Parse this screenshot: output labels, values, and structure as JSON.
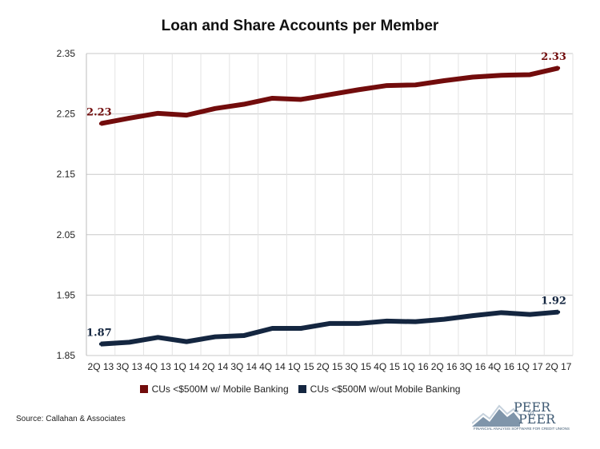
{
  "title": "Loan and Share Accounts per Member",
  "source": "Source: Callahan & Associates",
  "logo": {
    "line1": "PEER",
    "to": "to",
    "line2": "PEER",
    "tagline": "FINANCIAL ANALYSIS SOFTWARE FOR CREDIT UNIONS"
  },
  "legend": [
    {
      "label": "CUs <$500M w/ Mobile Banking",
      "color": "#720c0c"
    },
    {
      "label": "CUs <$500M w/out Mobile Banking",
      "color": "#142640"
    }
  ],
  "chart_data": {
    "type": "line",
    "title": "Loan and Share Accounts per Member",
    "categories": [
      "2Q 13",
      "3Q 13",
      "4Q 13",
      "1Q 14",
      "2Q 14",
      "3Q 14",
      "4Q 14",
      "1Q 15",
      "2Q 15",
      "3Q 15",
      "4Q 15",
      "1Q 16",
      "2Q 16",
      "3Q 16",
      "4Q 16",
      "1Q 17",
      "2Q 17"
    ],
    "ylim": [
      1.85,
      2.35
    ],
    "yticks": [
      "2.35",
      "2.25",
      "2.15",
      "2.05",
      "1.95",
      "1.85"
    ],
    "grid": true,
    "legend_position": "bottom",
    "series": [
      {
        "name": "CUs <$500M w/ Mobile Banking",
        "color": "#720c0c",
        "values": [
          2.234,
          2.243,
          2.251,
          2.248,
          2.259,
          2.266,
          2.276,
          2.274,
          2.282,
          2.29,
          2.297,
          2.298,
          2.305,
          2.311,
          2.314,
          2.315,
          2.326
        ],
        "labels": [
          {
            "index": 0,
            "text": "2.23"
          },
          {
            "index": 16,
            "text": "2.33"
          }
        ]
      },
      {
        "name": "CUs <$500M w/out Mobile Banking",
        "color": "#142640",
        "values": [
          1.869,
          1.872,
          1.88,
          1.873,
          1.881,
          1.883,
          1.895,
          1.895,
          1.903,
          1.903,
          1.907,
          1.906,
          1.91,
          1.916,
          1.921,
          1.918,
          1.922
        ],
        "labels": [
          {
            "index": 0,
            "text": "1.87"
          },
          {
            "index": 16,
            "text": "1.92"
          }
        ]
      }
    ]
  }
}
